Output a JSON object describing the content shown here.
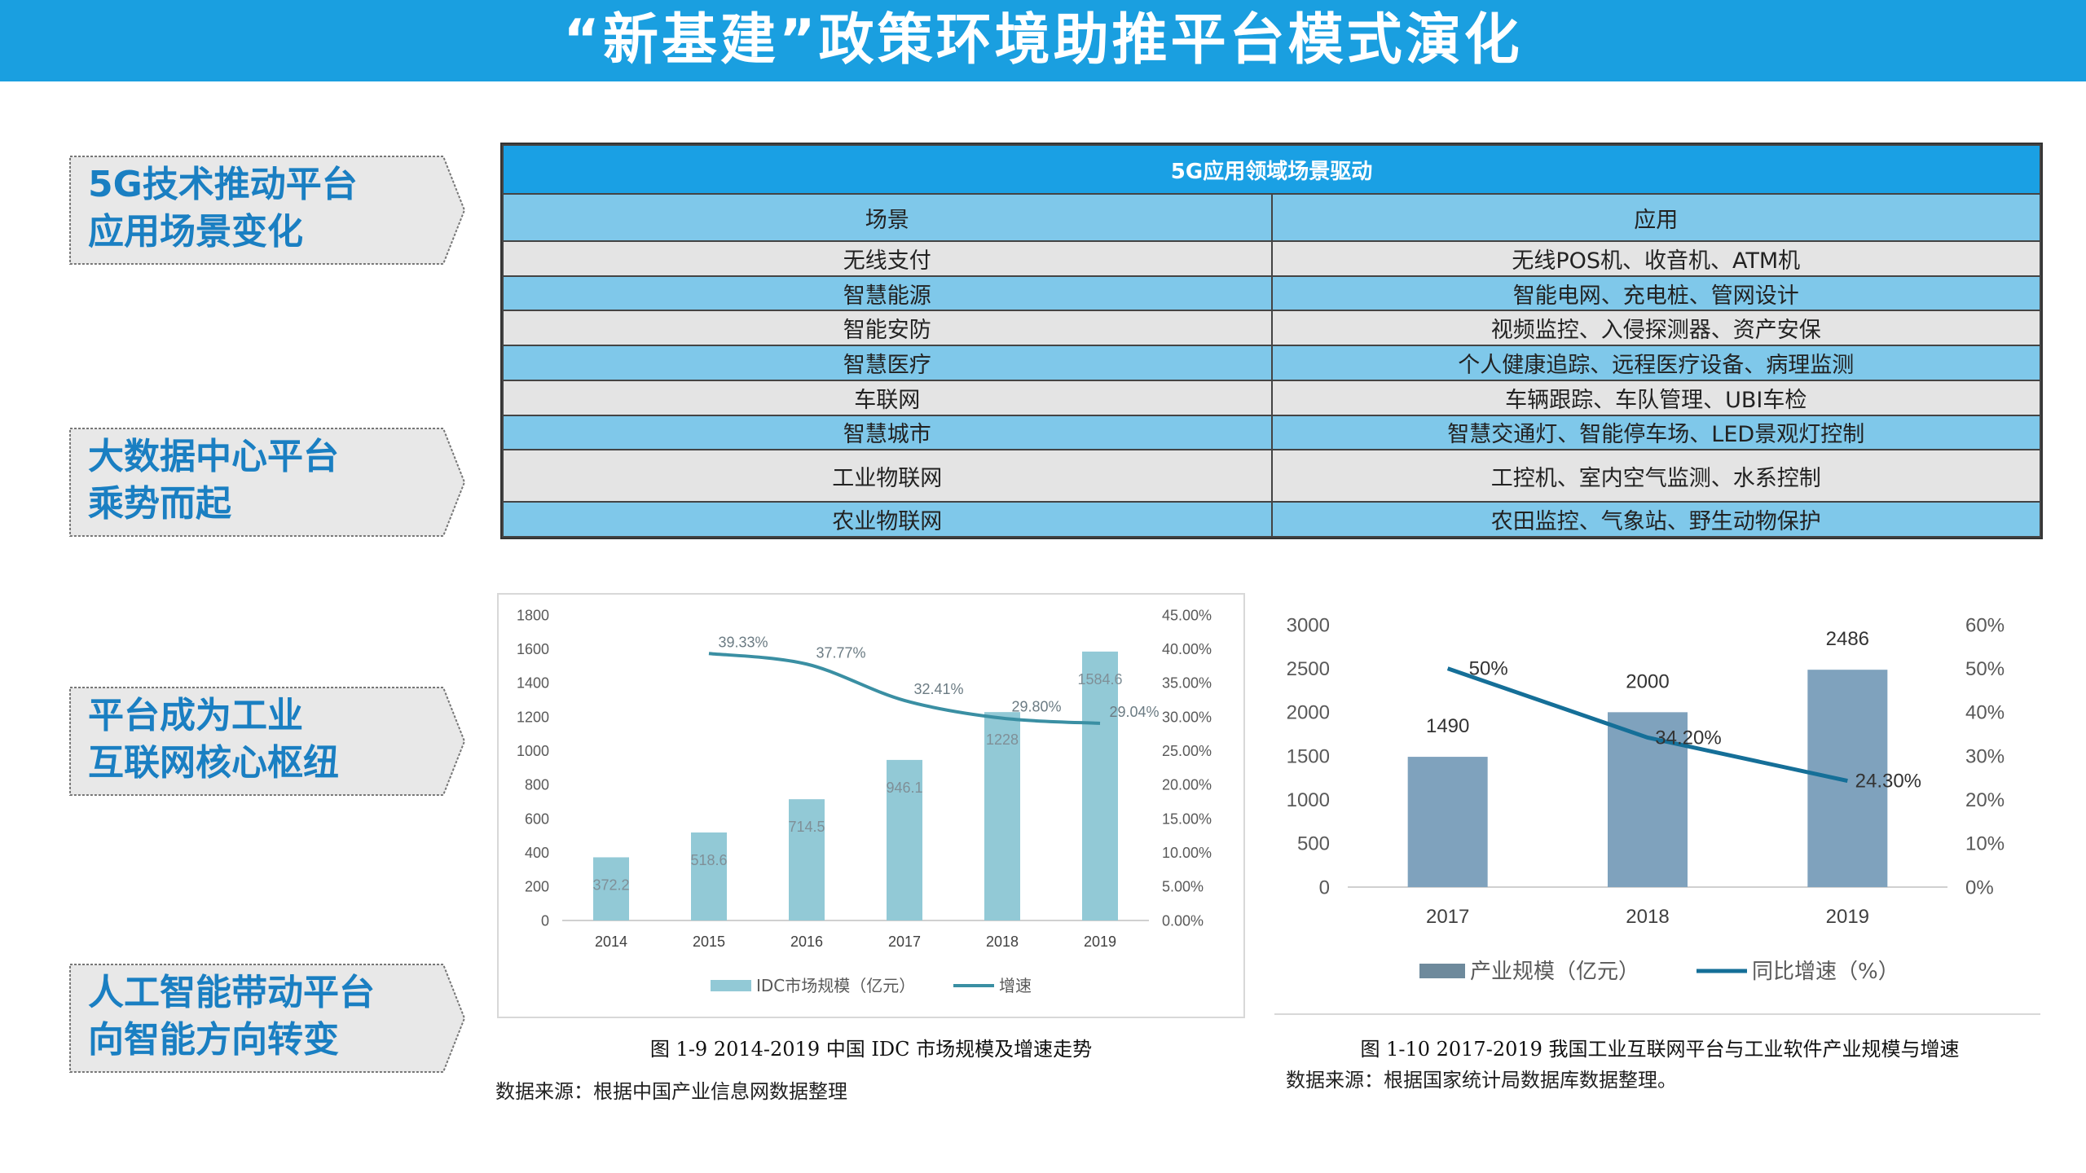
{
  "title": "“新基建”政策环境助推平台模式演化",
  "side_items": [
    {
      "line1": "5G技术推动平台",
      "line2": "应用场景变化"
    },
    {
      "line1": "大数据中心平台",
      "line2": "乘势而起"
    },
    {
      "line1": "平台成为工业",
      "line2": "互联网核心枢纽"
    },
    {
      "line1": "人工智能带动平台",
      "line2": "向智能方向转变"
    }
  ],
  "scene_table": {
    "title": "5G应用领域场景驱动",
    "headers": [
      "场景",
      "应用"
    ],
    "rows": [
      {
        "scene": "无线支付",
        "app": "无线POS机、收音机、ATM机"
      },
      {
        "scene": "智慧能源",
        "app": "智能电网、充电桩、管网设计"
      },
      {
        "scene": "智能安防",
        "app": "视频监控、入侵探测器、资产安保"
      },
      {
        "scene": "智慧医疗",
        "app": "个人健康追踪、远程医疗设备、病理监测"
      },
      {
        "scene": "车联网",
        "app": "车辆跟踪、车队管理、UBI车检"
      },
      {
        "scene": "智慧城市",
        "app": "智慧交通灯、智能停车场、LED景观灯控制"
      },
      {
        "scene": "工业物联网",
        "app": "工控机、室内空气监测、水系控制"
      },
      {
        "scene": "农业物联网",
        "app": "农田监控、气象站、野生动物保护"
      }
    ]
  },
  "chart_data": [
    {
      "type": "bar",
      "categories": [
        "2014",
        "2015",
        "2016",
        "2017",
        "2018",
        "2019"
      ],
      "series": [
        {
          "name": "IDC市场规模（亿元）",
          "type": "bar",
          "values": [
            372.2,
            518.6,
            714.5,
            946.1,
            1228,
            1584.6
          ],
          "labels": [
            "372.2",
            "518.6",
            "714.5",
            "946.1",
            "1228",
            "1584.6"
          ],
          "color": "#92c9d6"
        },
        {
          "name": "增速",
          "type": "line",
          "axis": "right",
          "values": [
            null,
            39.33,
            37.77,
            32.41,
            29.8,
            29.04
          ],
          "labels": [
            "",
            "39.33%",
            "37.77%",
            "32.41%",
            "29.80%",
            "29.04%"
          ],
          "color": "#3a8fa3"
        }
      ],
      "ylim": [
        0,
        1800
      ],
      "yticks": [
        "0",
        "200",
        "400",
        "600",
        "800",
        "1000",
        "1200",
        "1400",
        "1600",
        "1800"
      ],
      "y2lim": [
        0,
        45
      ],
      "y2ticks": [
        "0.00%",
        "5.00%",
        "10.00%",
        "15.00%",
        "20.00%",
        "25.00%",
        "30.00%",
        "35.00%",
        "40.00%",
        "45.00%"
      ],
      "legend": "bottom",
      "grid": false,
      "caption": "图 1-9 2014-2019 中国 IDC 市场规模及增速走势",
      "source": "数据来源：根据中国产业信息网数据整理"
    },
    {
      "type": "bar",
      "categories": [
        "2017",
        "2018",
        "2019"
      ],
      "series": [
        {
          "name": "产业规模（亿元）",
          "type": "bar",
          "values": [
            1490,
            2000,
            2486
          ],
          "labels": [
            "1490",
            "2000",
            "2486"
          ],
          "color": "#7fa2bd"
        },
        {
          "name": "同比增速（%）",
          "type": "line",
          "axis": "right",
          "values": [
            50,
            34.2,
            24.3
          ],
          "labels": [
            "50%",
            "34.20%",
            "24.30%"
          ],
          "color": "#156f98"
        }
      ],
      "ylim": [
        0,
        3000
      ],
      "yticks": [
        "0",
        "500",
        "1000",
        "1500",
        "2000",
        "2500",
        "3000"
      ],
      "y2lim": [
        0,
        60
      ],
      "y2ticks": [
        "0%",
        "10%",
        "20%",
        "30%",
        "40%",
        "50%",
        "60%"
      ],
      "legend": "bottom",
      "grid": false,
      "caption": "图 1-10 2017-2019 我国工业互联网平台与工业软件产业规模与增速",
      "source": "数据来源：根据国家统计局数据库数据整理。"
    }
  ]
}
